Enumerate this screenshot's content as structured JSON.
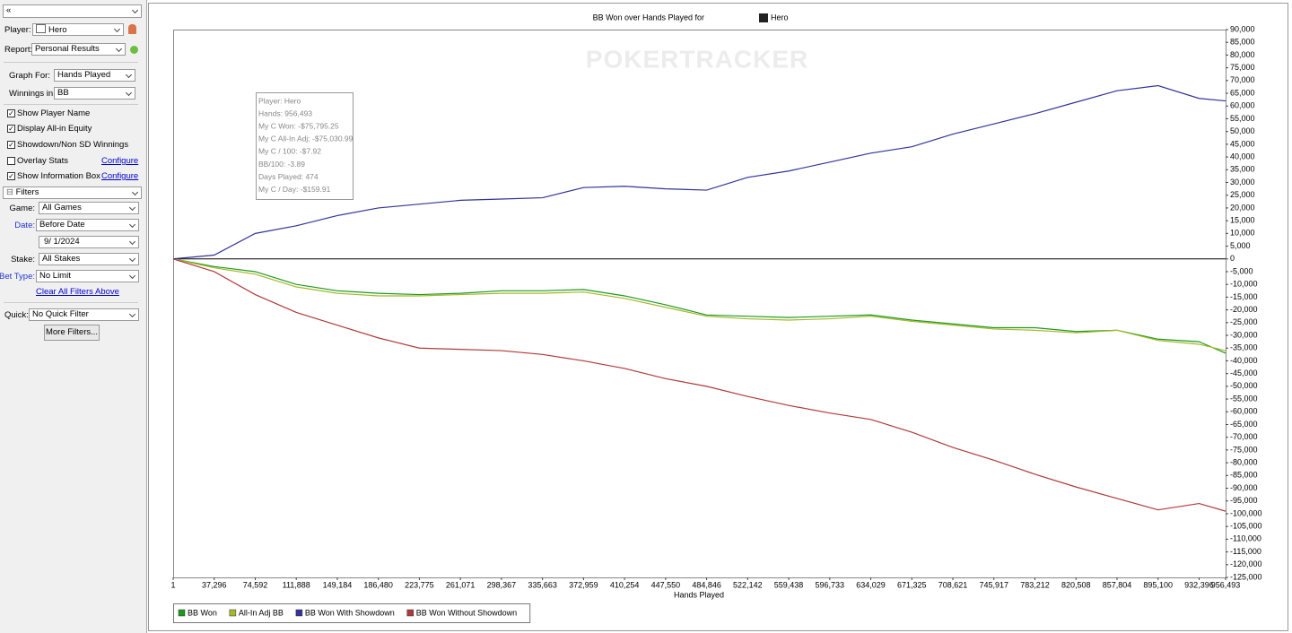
{
  "sidebar": {
    "search": "«",
    "player": {
      "label": "Player:",
      "value": "Hero"
    },
    "report": {
      "label": "Report:",
      "value": "Personal Results"
    },
    "graph_for": {
      "label": "Graph For:",
      "value": "Hands Played"
    },
    "winnings_in": {
      "label": "Winnings in:",
      "value": "BB"
    },
    "checkboxes": [
      {
        "label": "Show Player Name",
        "checked": true
      },
      {
        "label": "Display All-in Equity",
        "checked": true
      },
      {
        "label": "Showdown/Non SD Winnings",
        "checked": true
      },
      {
        "label": "Overlay Stats",
        "checked": false,
        "link": "Configure"
      },
      {
        "label": "Show Information Box",
        "checked": true,
        "link": "Configure"
      }
    ],
    "filters_header": "Filters",
    "game": {
      "label": "Game:",
      "value": "All Games"
    },
    "date": {
      "label": "Date:",
      "value": "Before Date",
      "date": "9/ 1/2024"
    },
    "stake": {
      "label": "Stake:",
      "value": "All Stakes"
    },
    "bet_type": {
      "label": "Bet Type:",
      "value": "No Limit"
    },
    "clear_filters": "Clear All Filters Above",
    "quick": {
      "label": "Quick:",
      "value": "No Quick Filter"
    },
    "more_filters": "More Filters..."
  },
  "chart_data": {
    "type": "line",
    "title": "BB Won over Hands Played for",
    "title_player": "Hero",
    "watermark": "POKERTRACKER",
    "xlabel": "Hands Played",
    "info_box": [
      "Player: Hero",
      "Hands: 956,493",
      "My C Won: -$75,795.25",
      "My C All-In Adj: -$75,030.99",
      "My C / 100: -$7.92",
      "BB/100: -3.89",
      "Days Played: 474",
      "My C / Day: -$159.91"
    ],
    "x": [
      1,
      37296,
      74592,
      111888,
      149184,
      186480,
      223775,
      261071,
      298367,
      335663,
      372959,
      410254,
      447550,
      484846,
      522142,
      559438,
      596733,
      634029,
      671325,
      708621,
      745917,
      783212,
      820508,
      857804,
      895100,
      932396,
      956493
    ],
    "series": [
      {
        "name": "BB Won",
        "color": "#1e9a1e",
        "values": [
          0,
          -3000,
          -5000,
          -10000,
          -12500,
          -13500,
          -14000,
          -13500,
          -12500,
          -12500,
          -12000,
          -14500,
          -18000,
          -22000,
          -22500,
          -23000,
          -22500,
          -22000,
          -24000,
          -25500,
          -27000,
          -27000,
          -28500,
          -28000,
          -31500,
          -32500,
          -37000
        ]
      },
      {
        "name": "All-In Adj BB",
        "color": "#a6b82a",
        "values": [
          0,
          -3500,
          -6000,
          -11000,
          -13500,
          -14500,
          -14500,
          -14000,
          -13500,
          -13500,
          -13000,
          -15500,
          -19000,
          -22500,
          -23500,
          -24000,
          -23500,
          -22500,
          -24500,
          -26000,
          -27500,
          -28000,
          -29000,
          -28000,
          -32000,
          -33500,
          -36000
        ]
      },
      {
        "name": "BB Won With Showdown",
        "color": "#33339a",
        "values": [
          0,
          1500,
          10000,
          13000,
          17000,
          20000,
          21500,
          23000,
          23500,
          24000,
          28000,
          28500,
          27500,
          27000,
          32000,
          34500,
          38000,
          41500,
          44000,
          49000,
          53000,
          57000,
          61500,
          66000,
          68000,
          63000,
          62000
        ]
      },
      {
        "name": "BB Won Without Showdown",
        "color": "#b03a3a",
        "values": [
          0,
          -5000,
          -14000,
          -21000,
          -26000,
          -31000,
          -35000,
          -35500,
          -36000,
          -37500,
          -40000,
          -43000,
          -47000,
          -50000,
          -54000,
          -57500,
          -60500,
          -63000,
          -68000,
          -74000,
          -79000,
          -84500,
          -89500,
          -94000,
          -98500,
          -96000,
          -99000
        ]
      }
    ],
    "xlim": [
      1,
      956493
    ],
    "xticks": [
      1,
      {
        "value": 37296,
        "label": "37,296"
      },
      {
        "value": 74592,
        "label": "74,592"
      },
      {
        "value": 111888,
        "label": "111,888"
      },
      {
        "value": 149184,
        "label": "149,184"
      },
      {
        "value": 186480,
        "label": "186,480"
      },
      {
        "value": 223775,
        "label": "223,775"
      },
      {
        "value": 261071,
        "label": "261,071"
      },
      {
        "value": 298367,
        "label": "298,367"
      },
      {
        "value": 335663,
        "label": "335,663"
      },
      {
        "value": 372959,
        "label": "372,959"
      },
      {
        "value": 410254,
        "label": "410,254"
      },
      {
        "value": 447550,
        "label": "447,550"
      },
      {
        "value": 484846,
        "label": "484,846"
      },
      {
        "value": 522142,
        "label": "522,142"
      },
      {
        "value": 559438,
        "label": "559,438"
      },
      {
        "value": 596733,
        "label": "596,733"
      },
      {
        "value": 634029,
        "label": "634,029"
      },
      {
        "value": 671325,
        "label": "671,325"
      },
      {
        "value": 708621,
        "label": "708,621"
      },
      {
        "value": 745917,
        "label": "745,917"
      },
      {
        "value": 783212,
        "label": "783,212"
      },
      {
        "value": 820508,
        "label": "820,508"
      },
      {
        "value": 857804,
        "label": "857,804"
      },
      {
        "value": 895100,
        "label": "895,100"
      },
      {
        "value": 932396,
        "label": "932,396"
      },
      {
        "value": 956493,
        "label": "956,493"
      }
    ],
    "ylim": [
      -125000,
      90000
    ],
    "yticks": [
      {
        "value": 90000,
        "label": "90,000"
      },
      {
        "value": 85000,
        "label": "85,000"
      },
      {
        "value": 80000,
        "label": "80,000"
      },
      {
        "value": 75000,
        "label": "75,000"
      },
      {
        "value": 70000,
        "label": "70,000"
      },
      {
        "value": 65000,
        "label": "65,000"
      },
      {
        "value": 60000,
        "label": "60,000"
      },
      {
        "value": 55000,
        "label": "55,000"
      },
      {
        "value": 50000,
        "label": "50,000"
      },
      {
        "value": 45000,
        "label": "45,000"
      },
      {
        "value": 40000,
        "label": "40,000"
      },
      {
        "value": 35000,
        "label": "35,000"
      },
      {
        "value": 30000,
        "label": "30,000"
      },
      {
        "value": 25000,
        "label": "25,000"
      },
      {
        "value": 20000,
        "label": "20,000"
      },
      {
        "value": 15000,
        "label": "15,000"
      },
      {
        "value": 10000,
        "label": "10,000"
      },
      {
        "value": 5000,
        "label": "5,000"
      },
      0,
      {
        "value": -5000,
        "label": "-5,000"
      },
      {
        "value": -10000,
        "label": "-10,000"
      },
      {
        "value": -15000,
        "label": "-15,000"
      },
      {
        "value": -20000,
        "label": "-20,000"
      },
      {
        "value": -25000,
        "label": "-25,000"
      },
      {
        "value": -30000,
        "label": "-30,000"
      },
      {
        "value": -35000,
        "label": "-35,000"
      },
      {
        "value": -40000,
        "label": "-40,000"
      },
      {
        "value": -45000,
        "label": "-45,000"
      },
      {
        "value": -50000,
        "label": "-50,000"
      },
      {
        "value": -55000,
        "label": "-55,000"
      },
      {
        "value": -60000,
        "label": "-60,000"
      },
      {
        "value": -65000,
        "label": "-65,000"
      },
      {
        "value": -70000,
        "label": "-70,000"
      },
      {
        "value": -75000,
        "label": "-75,000"
      },
      {
        "value": -80000,
        "label": "-80,000"
      },
      {
        "value": -85000,
        "label": "-85,000"
      },
      {
        "value": -90000,
        "label": "-90,000"
      },
      {
        "value": -95000,
        "label": "-95,000"
      },
      {
        "value": -100000,
        "label": "-100,000"
      },
      {
        "value": -105000,
        "label": "-105,000"
      },
      {
        "value": -110000,
        "label": "-110,000"
      },
      {
        "value": -115000,
        "label": "-115,000"
      },
      {
        "value": -120000,
        "label": "-120,000"
      },
      {
        "value": -125000,
        "label": "-125,000"
      }
    ],
    "grid": false
  }
}
